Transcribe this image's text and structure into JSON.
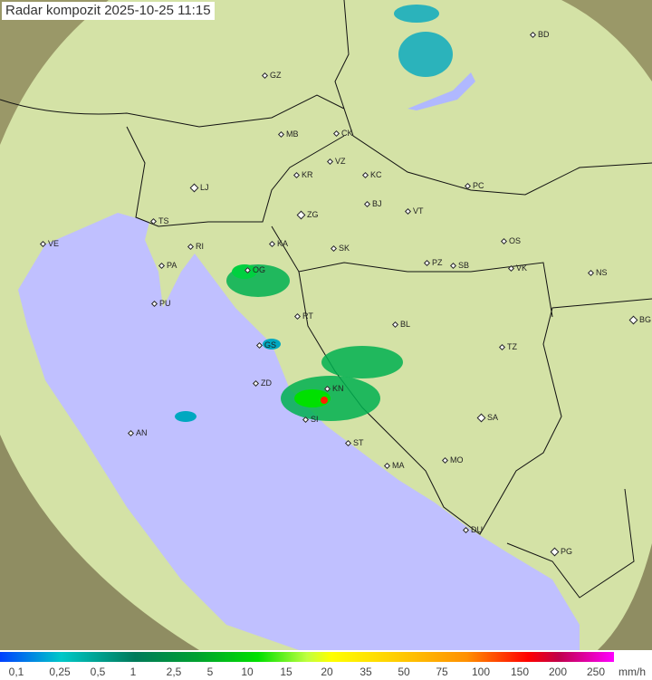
{
  "title": "Radar kompozit  2025-10-25   11:15",
  "cities": [
    "GZ",
    "BD",
    "MB",
    "CK",
    "VZ",
    "KR",
    "KC",
    "PC",
    "LJ",
    "BJ",
    "VT",
    "ZG",
    "TS",
    "VE",
    "RI",
    "KA",
    "SK",
    "OS",
    "PA",
    "PZ",
    "SB",
    "VK",
    "NS",
    "OG",
    "PU",
    "RT",
    "BL",
    "BG",
    "GS",
    "TZ",
    "ZD",
    "KN",
    "SA",
    "SI",
    "AN",
    "ST",
    "MA",
    "MO",
    "DU",
    "PG"
  ],
  "legend": {
    "ticks": [
      "0,1",
      "0,25",
      "0,5",
      "1",
      "2,5",
      "5",
      "10",
      "15",
      "20",
      "35",
      "50",
      "75",
      "100",
      "150",
      "200",
      "250"
    ],
    "unit": "mm/h"
  },
  "colors": {
    "sea": "#c0c0ff",
    "land": "#d8e6a8",
    "outside": "#8a8a60",
    "rain_light": "#00a8c0",
    "rain_mid": "#00c040",
    "rain_heavy": "#ff2000"
  }
}
